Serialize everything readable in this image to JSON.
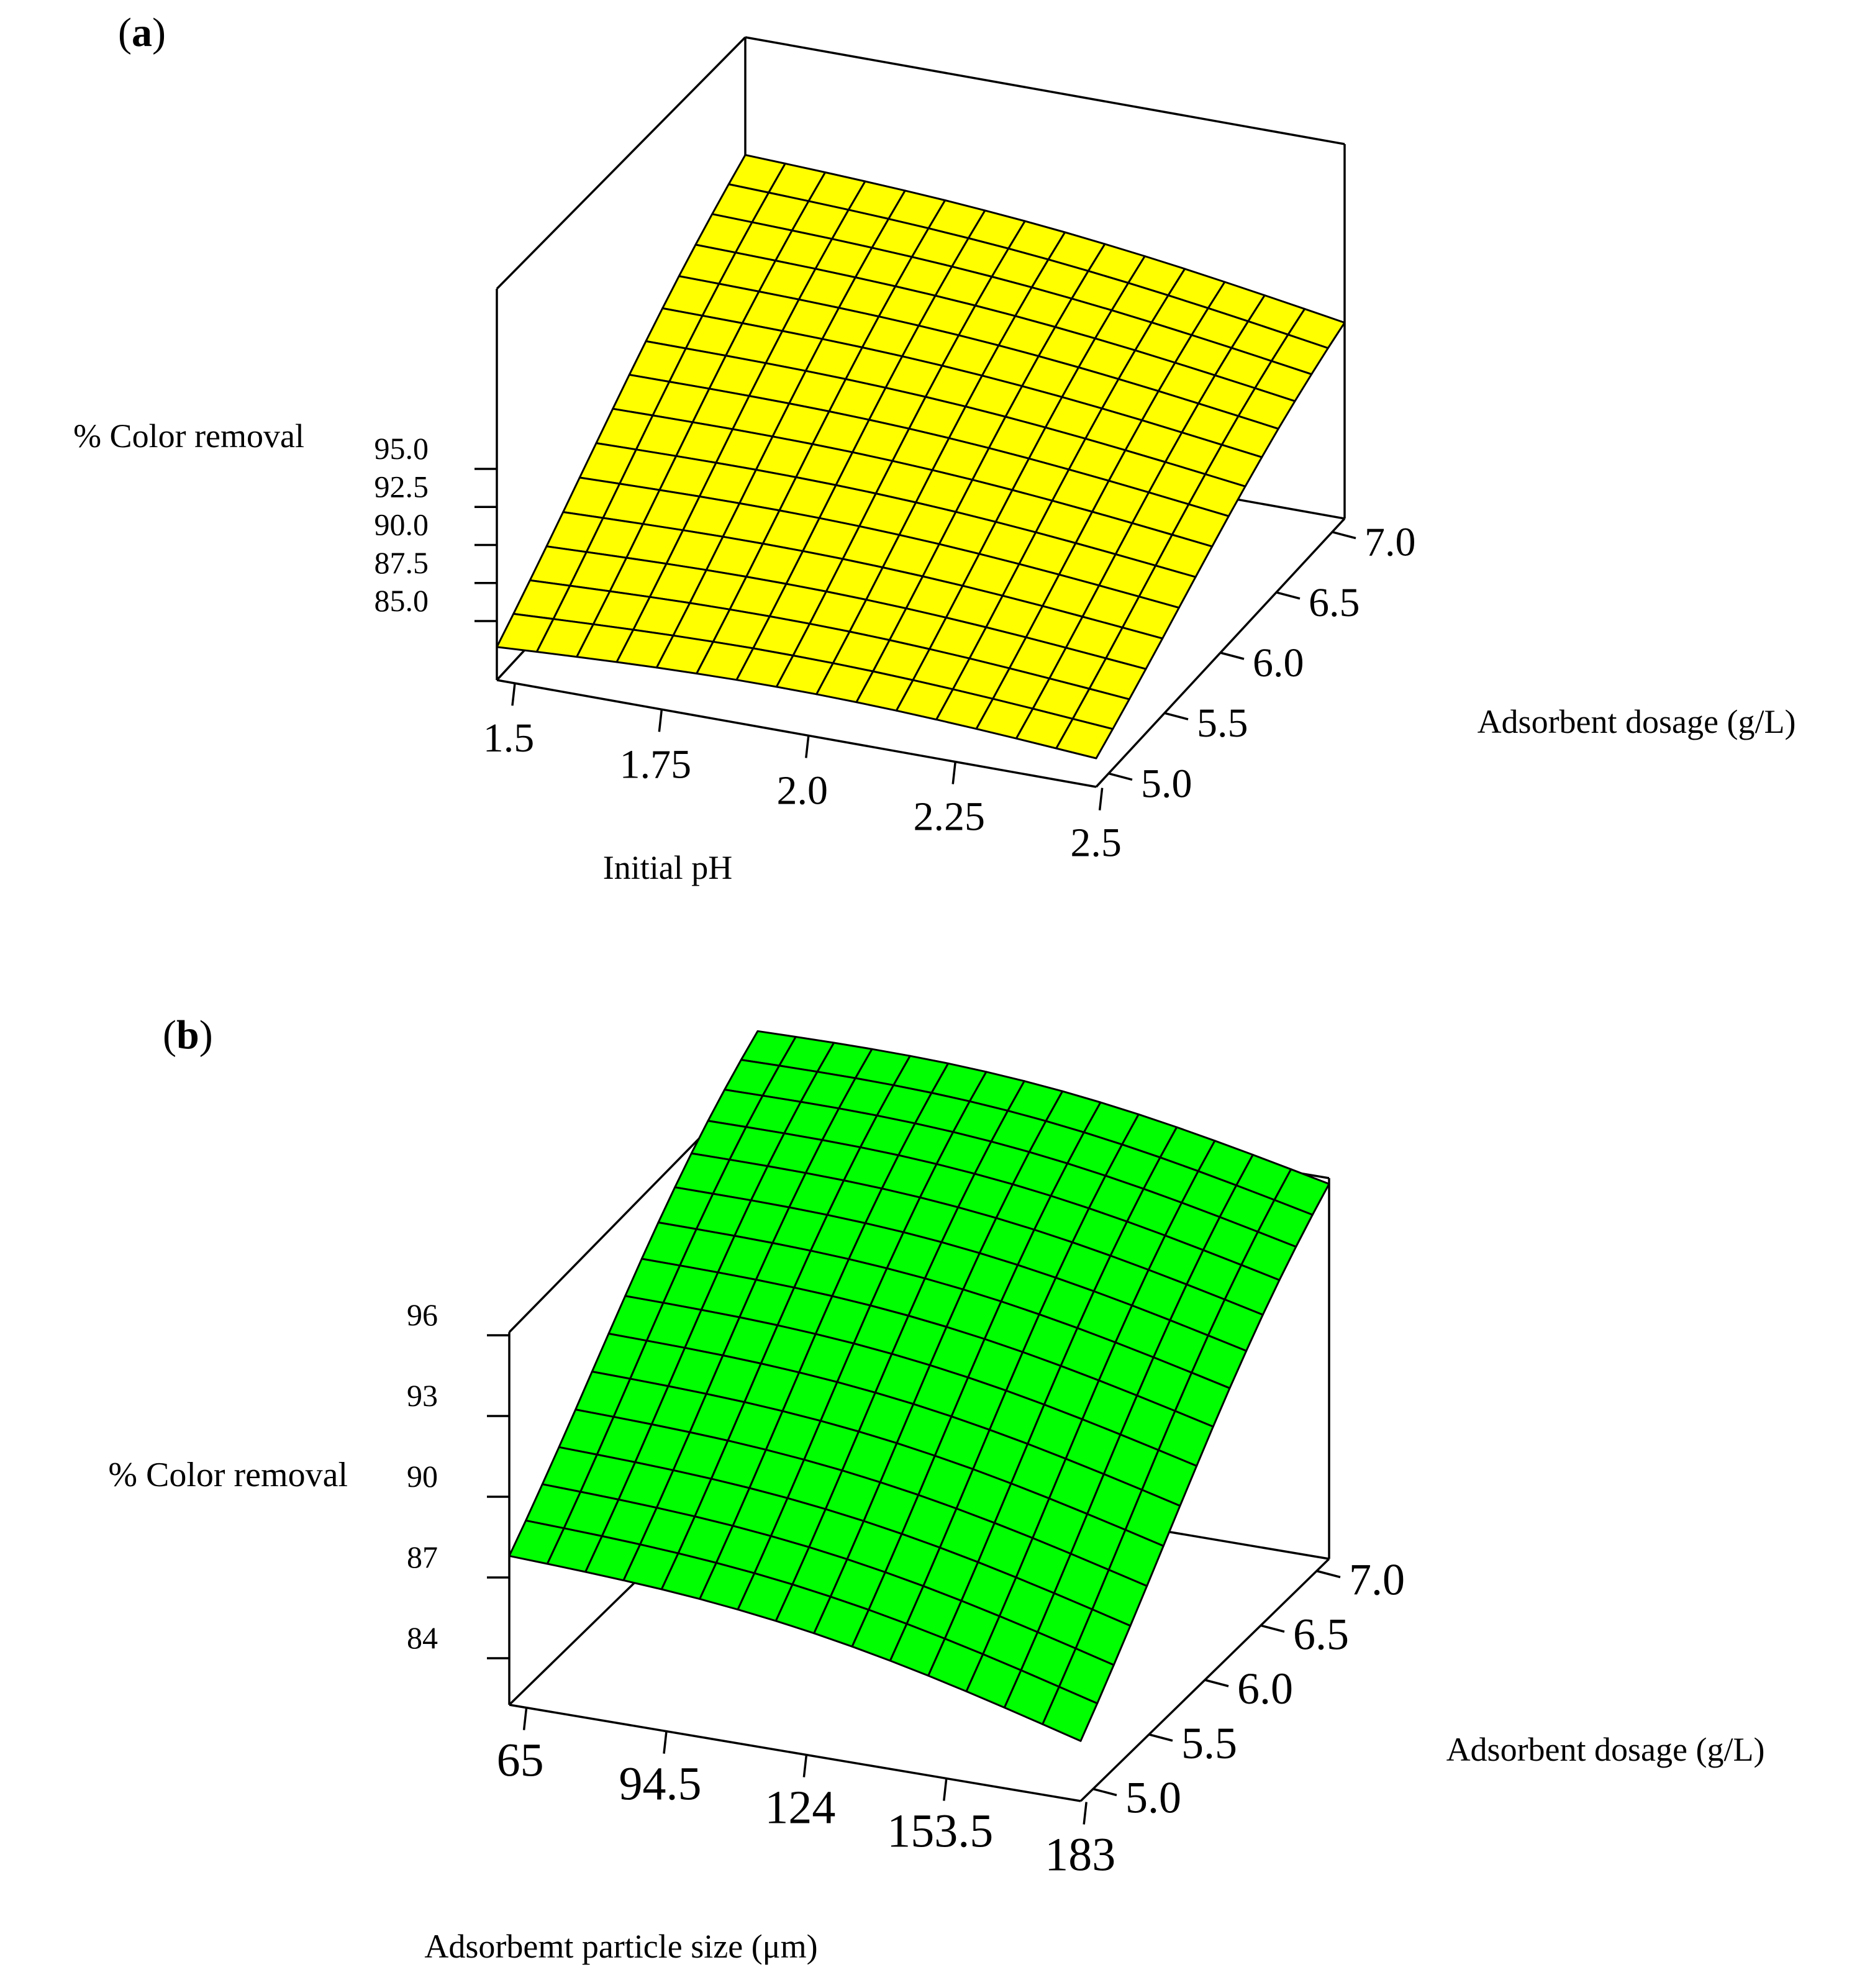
{
  "chart_data": [
    {
      "type": "surface",
      "panel_label": {
        "open": "(",
        "letter": "a",
        "close": ")"
      },
      "surface_color": "#ffff00",
      "mesh_color": "#000000",
      "zlabel": "% Color removal",
      "xlabel": "Initial pH",
      "ylabel": "Adsorbent dosage (g/L)",
      "x_ticks": [
        "1.5",
        "1.75",
        "2.0",
        "2.25",
        "2.5"
      ],
      "y_ticks": [
        "5.0",
        "5.5",
        "6.0",
        "6.5",
        "7.0"
      ],
      "z_ticks": [
        "85.0",
        "87.5",
        "90.0",
        "92.5",
        "95.0"
      ],
      "xlim": [
        1.5,
        2.5
      ],
      "ylim": [
        5.0,
        7.0
      ],
      "zlim": [
        83.5,
        97.5
      ],
      "grid_size": [
        16,
        16
      ],
      "surface_corners": {
        "x_min_y_min": 83.3,
        "x_max_y_min": 83.0,
        "x_min_y_max": 98.0,
        "x_max_y_max": 94.0
      }
    },
    {
      "type": "surface",
      "panel_label": {
        "open": "(",
        "letter": "b",
        "close": ")"
      },
      "surface_color": "#00ff00",
      "mesh_color": "#000000",
      "zlabel": "% Color removal",
      "xlabel": "Adsorbemt particle size (μm)",
      "ylabel": "Adsorbent dosage (g/L)",
      "x_ticks": [
        "65",
        "94.5",
        "124",
        "153.5",
        "183"
      ],
      "y_ticks": [
        "5.0",
        "5.5",
        "6.0",
        "6.5",
        "7.0"
      ],
      "z_ticks": [
        "84",
        "87",
        "90",
        "93",
        "96"
      ],
      "xlim": [
        65,
        183
      ],
      "ylim": [
        5.0,
        7.0
      ],
      "zlim": [
        82.5,
        99.5
      ],
      "grid_size": [
        16,
        16
      ],
      "surface_corners": {
        "x_min_y_min": 87.8,
        "x_max_y_min": 84.5,
        "x_min_y_max": 98.3,
        "x_max_y_max": 96.2
      }
    }
  ]
}
